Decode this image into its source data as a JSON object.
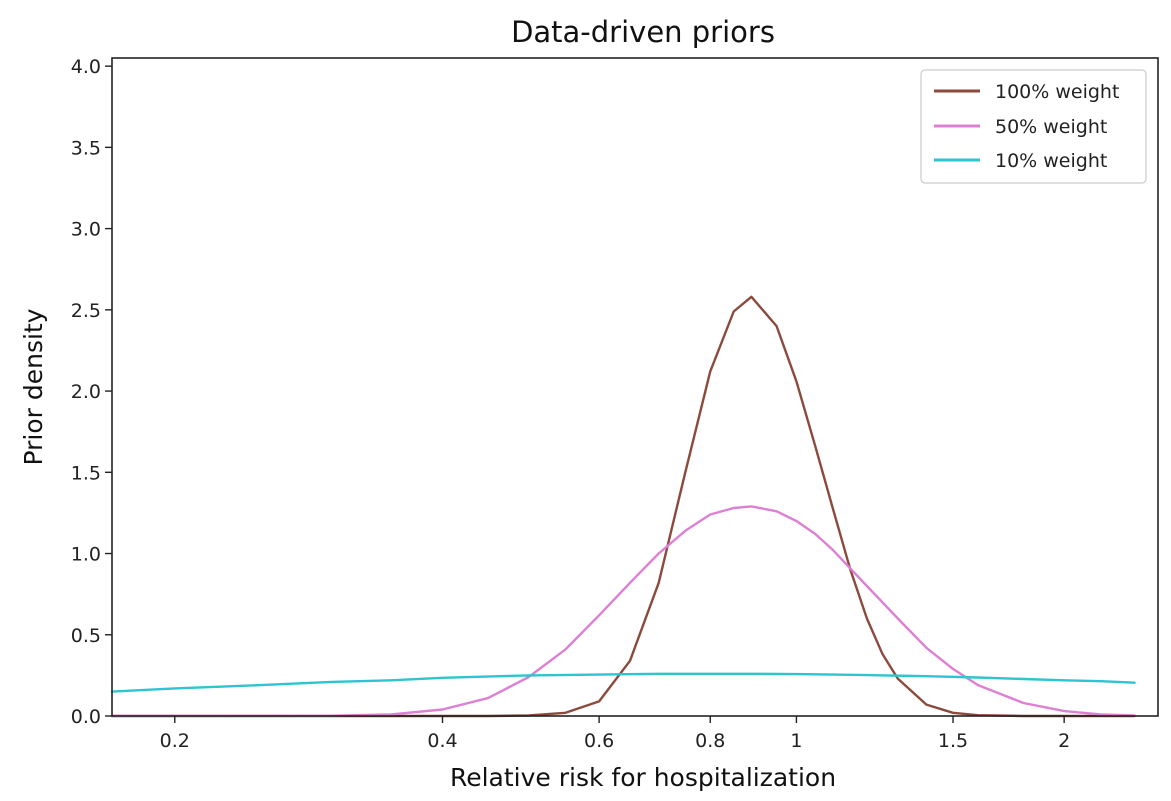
{
  "chart_data": {
    "type": "line",
    "title": "Data-driven priors",
    "xlabel": "Relative risk for hospitalization",
    "ylabel": "Prior density",
    "x_scale": "log",
    "xlim": [
      0.17,
      2.55
    ],
    "ylim": [
      0,
      4.05
    ],
    "x_ticks": [
      0.2,
      0.4,
      0.6,
      0.8,
      1,
      1.5,
      2
    ],
    "x_tick_labels": [
      "0.2",
      "0.4",
      "0.6",
      "0.8",
      "1",
      "1.5",
      "2"
    ],
    "y_ticks": [
      0.0,
      0.5,
      1.0,
      1.5,
      2.0,
      2.5,
      3.0,
      3.5,
      4.0
    ],
    "y_tick_labels": [
      "0.0",
      "0.5",
      "1.0",
      "1.5",
      "2.0",
      "2.5",
      "3.0",
      "3.5",
      "4.0"
    ],
    "grid": false,
    "legend_position": "top-right",
    "series": [
      {
        "name": "100% weight",
        "color": "#8c4a3c",
        "points": [
          [
            0.17,
            0.0
          ],
          [
            0.45,
            0.0
          ],
          [
            0.5,
            0.003
          ],
          [
            0.55,
            0.02
          ],
          [
            0.6,
            0.09
          ],
          [
            0.65,
            0.34
          ],
          [
            0.7,
            0.82
          ],
          [
            0.75,
            1.5
          ],
          [
            0.8,
            2.12
          ],
          [
            0.85,
            2.49
          ],
          [
            0.89,
            2.58
          ],
          [
            0.95,
            2.4
          ],
          [
            1.0,
            2.06
          ],
          [
            1.05,
            1.66
          ],
          [
            1.1,
            1.27
          ],
          [
            1.15,
            0.9
          ],
          [
            1.2,
            0.6
          ],
          [
            1.25,
            0.38
          ],
          [
            1.3,
            0.23
          ],
          [
            1.4,
            0.07
          ],
          [
            1.5,
            0.02
          ],
          [
            1.6,
            0.005
          ],
          [
            1.8,
            0.0
          ],
          [
            2.4,
            0.0
          ]
        ]
      },
      {
        "name": "50% weight",
        "color": "#dd80d4",
        "points": [
          [
            0.17,
            0.0
          ],
          [
            0.3,
            0.002
          ],
          [
            0.35,
            0.01
          ],
          [
            0.4,
            0.04
          ],
          [
            0.45,
            0.11
          ],
          [
            0.5,
            0.24
          ],
          [
            0.55,
            0.41
          ],
          [
            0.6,
            0.62
          ],
          [
            0.65,
            0.82
          ],
          [
            0.7,
            1.0
          ],
          [
            0.75,
            1.14
          ],
          [
            0.8,
            1.24
          ],
          [
            0.85,
            1.28
          ],
          [
            0.89,
            1.29
          ],
          [
            0.95,
            1.26
          ],
          [
            1.0,
            1.2
          ],
          [
            1.05,
            1.12
          ],
          [
            1.1,
            1.02
          ],
          [
            1.2,
            0.8
          ],
          [
            1.3,
            0.6
          ],
          [
            1.4,
            0.42
          ],
          [
            1.5,
            0.29
          ],
          [
            1.6,
            0.19
          ],
          [
            1.8,
            0.08
          ],
          [
            2.0,
            0.03
          ],
          [
            2.2,
            0.01
          ],
          [
            2.4,
            0.004
          ]
        ]
      },
      {
        "name": "10% weight",
        "color": "#2ec4d0",
        "points": [
          [
            0.17,
            0.15
          ],
          [
            0.2,
            0.17
          ],
          [
            0.25,
            0.19
          ],
          [
            0.3,
            0.21
          ],
          [
            0.35,
            0.22
          ],
          [
            0.4,
            0.235
          ],
          [
            0.5,
            0.25
          ],
          [
            0.6,
            0.255
          ],
          [
            0.7,
            0.26
          ],
          [
            0.8,
            0.26
          ],
          [
            0.9,
            0.26
          ],
          [
            1.0,
            0.258
          ],
          [
            1.1,
            0.255
          ],
          [
            1.2,
            0.252
          ],
          [
            1.4,
            0.245
          ],
          [
            1.6,
            0.237
          ],
          [
            1.8,
            0.228
          ],
          [
            2.0,
            0.22
          ],
          [
            2.2,
            0.214
          ],
          [
            2.4,
            0.205
          ]
        ]
      }
    ]
  }
}
